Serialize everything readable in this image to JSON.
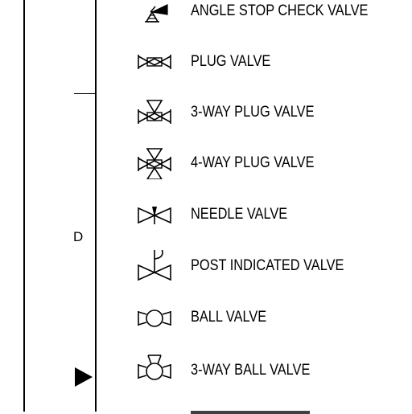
{
  "border": {
    "zone_letter": "D"
  },
  "legend": {
    "items": [
      {
        "label": "ANGLE STOP CHECK VALVE",
        "icon": "angle-stop-check-valve-icon"
      },
      {
        "label": "PLUG VALVE",
        "icon": "plug-valve-icon"
      },
      {
        "label": "3-WAY PLUG VALVE",
        "icon": "three-way-plug-valve-icon"
      },
      {
        "label": "4-WAY PLUG VALVE",
        "icon": "four-way-plug-valve-icon"
      },
      {
        "label": "NEEDLE VALVE",
        "icon": "needle-valve-icon"
      },
      {
        "label": "POST INDICATED VALVE",
        "icon": "post-indicated-valve-icon"
      },
      {
        "label": "BALL VALVE",
        "icon": "ball-valve-icon"
      },
      {
        "label": "3-WAY BALL VALVE",
        "icon": "three-way-ball-valve-icon"
      }
    ]
  }
}
